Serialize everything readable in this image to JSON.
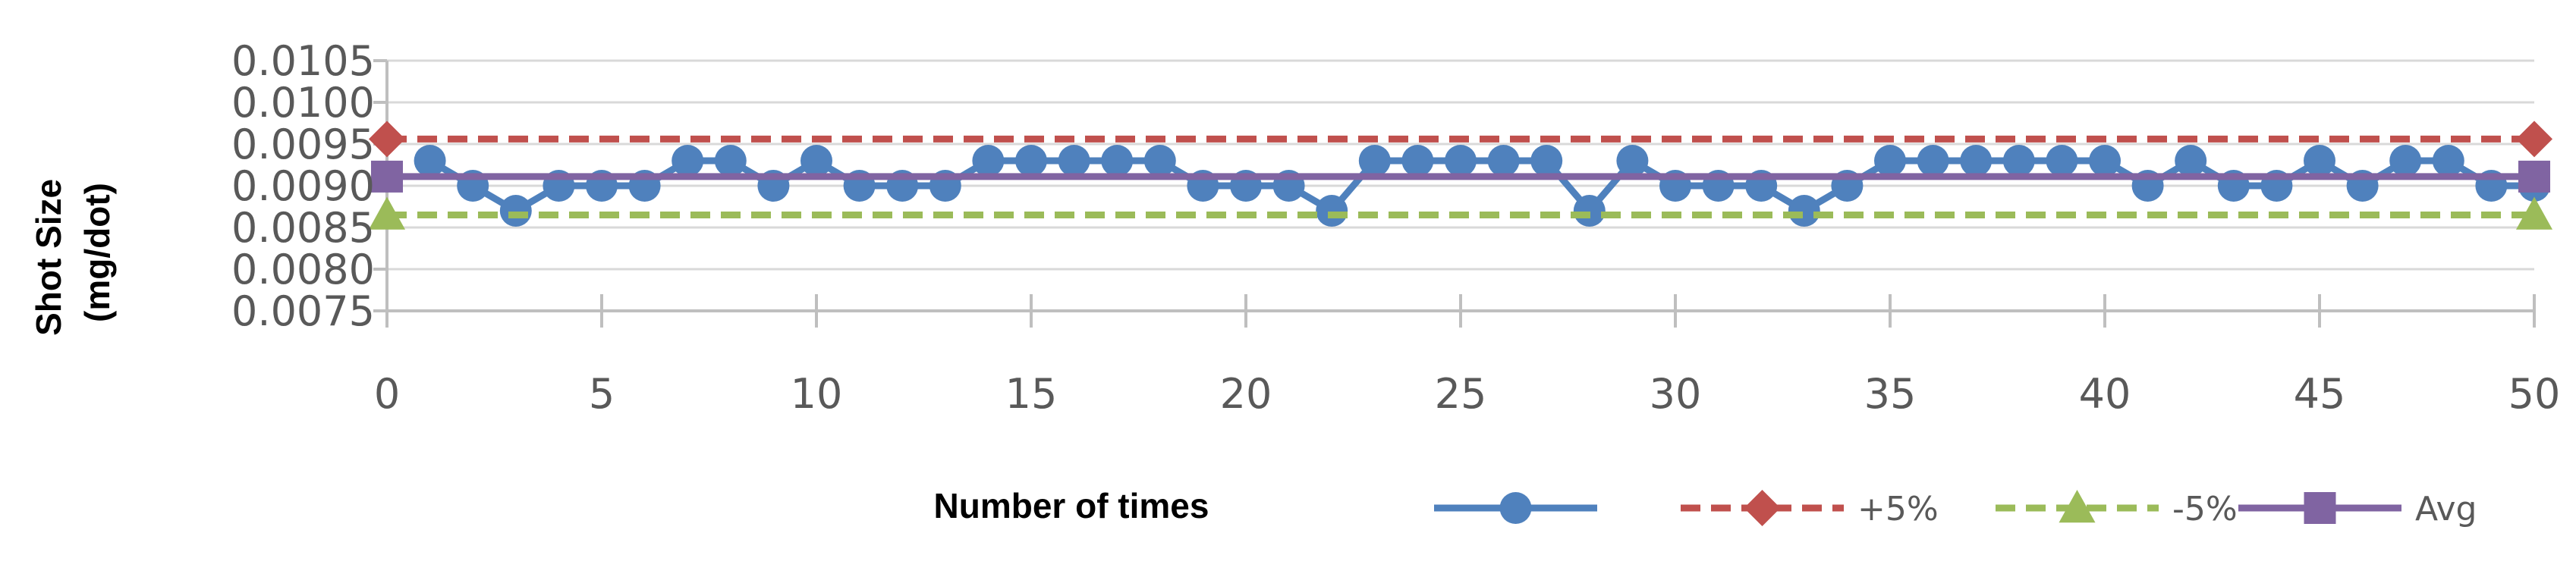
{
  "chart_data": {
    "type": "line",
    "title": "",
    "xlabel": "Number of times",
    "ylabel_lines": [
      "Shot Size",
      "(mg/dot)"
    ],
    "xlim": [
      0,
      50
    ],
    "ylim": [
      0.0075,
      0.0105
    ],
    "x_ticks": [
      0,
      5,
      10,
      15,
      20,
      25,
      30,
      35,
      40,
      45,
      50
    ],
    "x_tick_labels": [
      "0",
      "5",
      "10",
      "15",
      "20",
      "25",
      "30",
      "35",
      "40",
      "45",
      "50"
    ],
    "y_ticks": [
      0.0075,
      0.008,
      0.0085,
      0.009,
      0.0095,
      0.01,
      0.0105
    ],
    "y_tick_labels": [
      "0.0075",
      "0.0080",
      "0.0085",
      "0.0090",
      "0.0095",
      "0.0100",
      "0.0105"
    ],
    "grid": "horizontal",
    "legend_position": "bottom-right",
    "series": [
      {
        "name": "",
        "color": "#4F81BD",
        "marker": "circle",
        "line_style": "solid",
        "x": [
          1,
          2,
          3,
          4,
          5,
          6,
          7,
          8,
          9,
          10,
          11,
          12,
          13,
          14,
          15,
          16,
          17,
          18,
          19,
          20,
          21,
          22,
          23,
          24,
          25,
          26,
          27,
          28,
          29,
          30,
          31,
          32,
          33,
          34,
          35,
          36,
          37,
          38,
          39,
          40,
          41,
          42,
          43,
          44,
          45,
          46,
          47,
          48,
          49,
          50
        ],
        "values": [
          0.0093,
          0.009,
          0.0087,
          0.009,
          0.009,
          0.009,
          0.0093,
          0.0093,
          0.009,
          0.0093,
          0.009,
          0.009,
          0.009,
          0.0093,
          0.0093,
          0.0093,
          0.0093,
          0.0093,
          0.009,
          0.009,
          0.009,
          0.0087,
          0.0093,
          0.0093,
          0.0093,
          0.0093,
          0.0093,
          0.0087,
          0.0093,
          0.009,
          0.009,
          0.009,
          0.0087,
          0.009,
          0.0093,
          0.0093,
          0.0093,
          0.0093,
          0.0093,
          0.0093,
          0.009,
          0.0093,
          0.009,
          0.009,
          0.0093,
          0.009,
          0.0093,
          0.0093,
          0.009,
          0.009
        ]
      },
      {
        "name": "+5%",
        "color": "#C0504D",
        "marker": "diamond",
        "line_style": "dashed",
        "x": [
          0,
          50
        ],
        "values": [
          0.00956,
          0.00956
        ]
      },
      {
        "name": "-5%",
        "color": "#9BBB59",
        "marker": "triangle",
        "line_style": "dashed",
        "x": [
          0,
          50
        ],
        "values": [
          0.00865,
          0.00865
        ]
      },
      {
        "name": "Avg",
        "color": "#8064A2",
        "marker": "square",
        "line_style": "solid",
        "x": [
          0,
          50
        ],
        "values": [
          0.00911,
          0.00911
        ]
      }
    ]
  }
}
